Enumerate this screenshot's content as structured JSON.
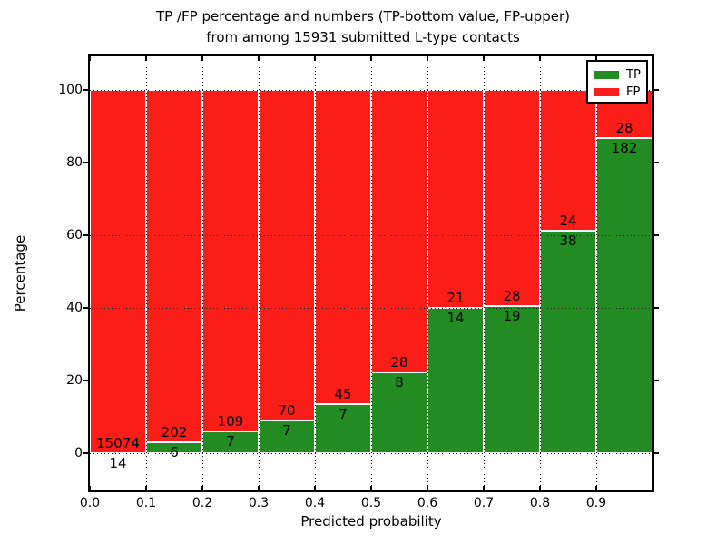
{
  "figure": {
    "background": "#ffffff",
    "text_color": "#000000",
    "frame_color": "#000000"
  },
  "chart_data": {
    "type": "bar",
    "subtype": "stacked-percentage",
    "title_line1": "TP /FP percentage and numbers (TP-bottom value, FP-upper)",
    "title_line2": "from among 15931 submitted L-type contacts",
    "xlabel": "Predicted probability",
    "ylabel": "Percentage",
    "total_contacts": 15931,
    "categories": [
      "0.0-0.1",
      "0.1-0.2",
      "0.2-0.3",
      "0.3-0.4",
      "0.4-0.5",
      "0.5-0.6",
      "0.6-0.7",
      "0.7-0.8",
      "0.8-0.9",
      "0.9-1.0"
    ],
    "series": [
      {
        "name": "TP",
        "color": "#228b22",
        "values": [
          14,
          6,
          7,
          7,
          7,
          8,
          14,
          19,
          38,
          182
        ]
      },
      {
        "name": "FP",
        "color": "#fa1d18",
        "values": [
          15074,
          202,
          109,
          70,
          45,
          28,
          21,
          28,
          24,
          28
        ]
      }
    ],
    "tp_percent": [
      0.09,
      2.88,
      6.03,
      9.09,
      13.46,
      22.22,
      40.0,
      40.43,
      61.29,
      86.67
    ],
    "x_ticklabels": [
      "0.0",
      "0.1",
      "0.2",
      "0.3",
      "0.4",
      "0.5",
      "0.6",
      "0.7",
      "0.8",
      "0.9"
    ],
    "y_ticks": [
      0,
      20,
      40,
      60,
      80,
      100
    ],
    "xlim": [
      0.0,
      1.0
    ],
    "ylim": [
      -10.75,
      109.75
    ],
    "grid": "dotted",
    "bar_edge_color": "#ffffff",
    "legend": {
      "position": "upper right",
      "entries": [
        {
          "label": "TP",
          "color": "#228b22"
        },
        {
          "label": "FP",
          "color": "#fa1d18"
        }
      ]
    }
  }
}
